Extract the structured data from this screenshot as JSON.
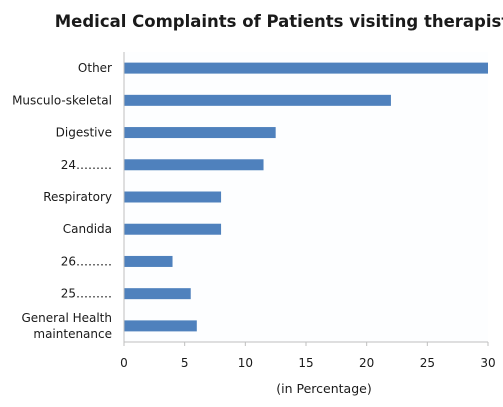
{
  "chart_data": {
    "type": "bar",
    "orientation": "horizontal",
    "title": "Medical Complaints of Patients visiting therapist",
    "xlabel": "(in Percentage)",
    "ylabel": "",
    "categories": [
      [
        "Other"
      ],
      [
        "Musculo-skeletal"
      ],
      [
        "Digestive"
      ],
      [
        "24………"
      ],
      [
        "Respiratory"
      ],
      [
        "Candida"
      ],
      [
        "26………"
      ],
      [
        "25………"
      ],
      [
        "General Health",
        "maintenance"
      ]
    ],
    "values": [
      30,
      22,
      12.5,
      11.5,
      8,
      8,
      4,
      5.5,
      6
    ],
    "xlim": [
      0,
      30
    ],
    "xticks": [
      "0",
      "5",
      "10",
      "15",
      "20",
      "25",
      "30"
    ],
    "grid": false,
    "legend": "none",
    "bar_color": "#4f81bd",
    "axis_color": "#bfbfbf"
  }
}
